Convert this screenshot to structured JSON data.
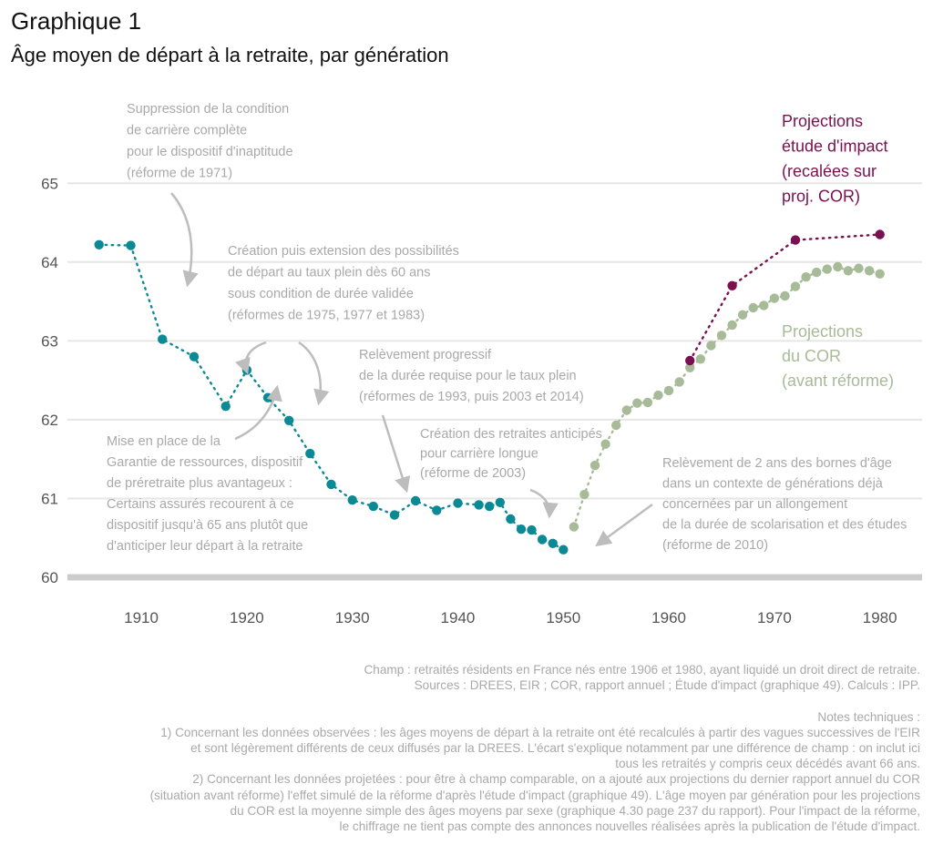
{
  "title": "Graphique 1",
  "subtitle": "Âge moyen de départ à la retraite, par génération",
  "colors": {
    "observed": "#0b8a96",
    "impact": "#7b1050",
    "cor": "#a8bb98",
    "annotation": "#a9a9a9",
    "grid": "#e6e6e6",
    "baseline": "#cccccc"
  },
  "chart_data": {
    "type": "scatter",
    "xlim": [
      1903,
      1984
    ],
    "ylim": [
      60,
      65
    ],
    "x_ticks": [
      1910,
      1920,
      1930,
      1940,
      1950,
      1960,
      1970,
      1980
    ],
    "y_ticks": [
      60,
      61,
      62,
      63,
      64,
      65
    ],
    "series": [
      {
        "key": "observed",
        "x": [
          1906,
          1909,
          1912,
          1915,
          1918,
          1920,
          1922,
          1924,
          1926,
          1928,
          1930,
          1932,
          1934,
          1936,
          1938,
          1940,
          1942,
          1943,
          1944,
          1945,
          1946,
          1947,
          1948,
          1949,
          1950
        ],
        "y": [
          64.22,
          64.21,
          63.02,
          62.8,
          62.17,
          62.63,
          62.28,
          61.99,
          61.57,
          61.18,
          60.98,
          60.9,
          60.79,
          60.97,
          60.85,
          60.94,
          60.92,
          60.9,
          60.95,
          60.74,
          60.61,
          60.6,
          60.48,
          60.43,
          60.35
        ]
      },
      {
        "key": "cor",
        "name": "Projections du COR (avant réforme)",
        "x": [
          1951,
          1952,
          1953,
          1954,
          1955,
          1956,
          1957,
          1958,
          1959,
          1960,
          1961,
          1962,
          1963,
          1964,
          1965,
          1966,
          1967,
          1968,
          1969,
          1970,
          1971,
          1972,
          1973,
          1974,
          1975,
          1976,
          1977,
          1978,
          1979,
          1980
        ],
        "y": [
          60.64,
          61.05,
          61.42,
          61.69,
          61.93,
          62.12,
          62.21,
          62.22,
          62.31,
          62.37,
          62.48,
          62.66,
          62.77,
          62.94,
          63.07,
          63.2,
          63.33,
          63.42,
          63.45,
          63.54,
          63.57,
          63.69,
          63.81,
          63.87,
          63.91,
          63.94,
          63.89,
          63.92,
          63.89,
          63.85
        ]
      },
      {
        "key": "impact",
        "name": "Projections étude d'impact (recalées sur proj. COR)",
        "x": [
          1962,
          1966,
          1972,
          1980
        ],
        "y": [
          62.75,
          63.7,
          64.28,
          64.35
        ]
      }
    ],
    "legend_labels": {
      "impact": [
        "Projections",
        "étude d'impact",
        "(recalées sur",
        "proj. COR)"
      ],
      "cor": [
        "Projections",
        "du COR",
        "(avant réforme)"
      ]
    },
    "annotations": [
      {
        "lines": [
          "Suppression de la condition",
          "de carrière complète",
          "pour le dispositif d'inaptitude",
          "(réforme de 1971)"
        ]
      },
      {
        "lines": [
          "Création puis extension des possibilités",
          "de départ au taux plein dès 60 ans",
          "sous condition de durée validée",
          "(réformes de 1975, 1977 et 1983)"
        ]
      },
      {
        "lines": [
          "Relèvement progressif",
          "de la durée requise pour le taux plein",
          "(réformes de 1993, puis 2003 et 2014)"
        ]
      },
      {
        "lines": [
          "Mise en place de la",
          "Garantie de ressources, dispositif",
          "de préretraite plus avantageux :",
          "Certains assurés recourent à ce",
          "dispositif jusqu'à 65 ans plutôt que",
          "d'anticiper leur départ à la retraite"
        ]
      },
      {
        "lines": [
          "Création des retraites anticipés",
          "pour carrière longue",
          "(réforme de 2003)"
        ]
      },
      {
        "lines": [
          "Relèvement de 2 ans des bornes d'âge",
          "dans un contexte de générations déjà",
          "concernées par un allongement",
          "de la durée de scolarisation et des études",
          "(réforme de 2010)"
        ]
      }
    ]
  },
  "footer": {
    "lines": [
      "Champ : retraités résidents en France nés entre 1906 et 1980, ayant liquidé un droit direct de retraite.",
      "Sources : DREES, EIR ; COR, rapport annuel ; Étude d'impact (graphique 49). Calculs : IPP.",
      "",
      "Notes techniques :",
      "1) Concernant les données observées : les âges moyens de départ à la retraite ont été recalculés à partir des vagues successives de l'EIR",
      "et sont légèrement différents de ceux diffusés par la DREES. L'écart s'explique notamment par une différence de champ : on inclut ici",
      "tous les retraités y compris ceux décédés avant 66 ans.",
      "2) Concernant les données projetées : pour être à champ comparable, on a ajouté aux projections du dernier rapport annuel du COR",
      "(situation avant réforme) l'effet simulé de la réforme d'après l'étude d'impact (graphique 49). L'âge moyen par génération pour les projections",
      "du COR est la moyenne simple des âges moyens par sexe (graphique 4.30 page 237 du rapport). Pour l'impact de la réforme,",
      "le chiffrage ne tient pas compte des annonces nouvelles réalisées après la publication de l'étude d'impact."
    ]
  }
}
